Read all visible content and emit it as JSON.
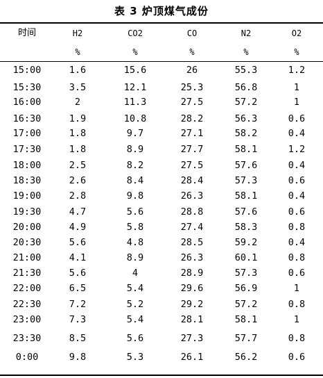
{
  "title": "表 3 炉顶煤气成份",
  "headers": [
    "时间",
    "H2",
    "CO2",
    "CO",
    "N2",
    "O2"
  ],
  "units": [
    "",
    "%",
    "%",
    "%",
    "%",
    "%"
  ],
  "rows": [
    [
      "15:00",
      "1.6",
      "15.6",
      "26",
      "55.3",
      "1.2"
    ],
    [
      "15:30",
      "3.5",
      "12.1",
      "25.3",
      "56.8",
      "1"
    ],
    [
      "16:00",
      "2",
      "11.3",
      "27.5",
      "57.2",
      "1"
    ],
    [
      "16:30",
      "1.9",
      "10.8",
      "28.2",
      "56.3",
      "0.6"
    ],
    [
      "17:00",
      "1.8",
      "9.7",
      "27.1",
      "58.2",
      "0.4"
    ],
    [
      "17:30",
      "1.8",
      "8.9",
      "27.7",
      "58.1",
      "1.2"
    ],
    [
      "18:00",
      "2.5",
      "8.2",
      "27.5",
      "57.6",
      "0.4"
    ],
    [
      "18:30",
      "2.6",
      "8.4",
      "28.4",
      "57.3",
      "0.6"
    ],
    [
      "19:00",
      "2.8",
      "9.8",
      "26.3",
      "58.1",
      "0.4"
    ],
    [
      "19:30",
      "4.7",
      "5.6",
      "28.8",
      "57.6",
      "0.6"
    ],
    [
      "20:00",
      "4.9",
      "5.8",
      "27.4",
      "58.3",
      "0.8"
    ],
    [
      "20:30",
      "5.6",
      "4.8",
      "28.5",
      "59.2",
      "0.4"
    ],
    [
      "21:00",
      "4.1",
      "8.9",
      "26.3",
      "60.1",
      "0.8"
    ],
    [
      "21:30",
      "5.6",
      "4",
      "28.9",
      "57.3",
      "0.6"
    ],
    [
      "22:00",
      "6.5",
      "5.4",
      "29.6",
      "56.9",
      "1"
    ],
    [
      "22:30",
      "7.2",
      "5.2",
      "29.2",
      "57.2",
      "0.8"
    ],
    [
      "23:00",
      "7.3",
      "5.4",
      "28.1",
      "58.1",
      "1"
    ],
    [
      "23:30",
      "8.5",
      "5.6",
      "27.3",
      "57.7",
      "0.8"
    ],
    [
      "0:00",
      "9.8",
      "5.3",
      "26.1",
      "56.2",
      "0.6"
    ]
  ]
}
